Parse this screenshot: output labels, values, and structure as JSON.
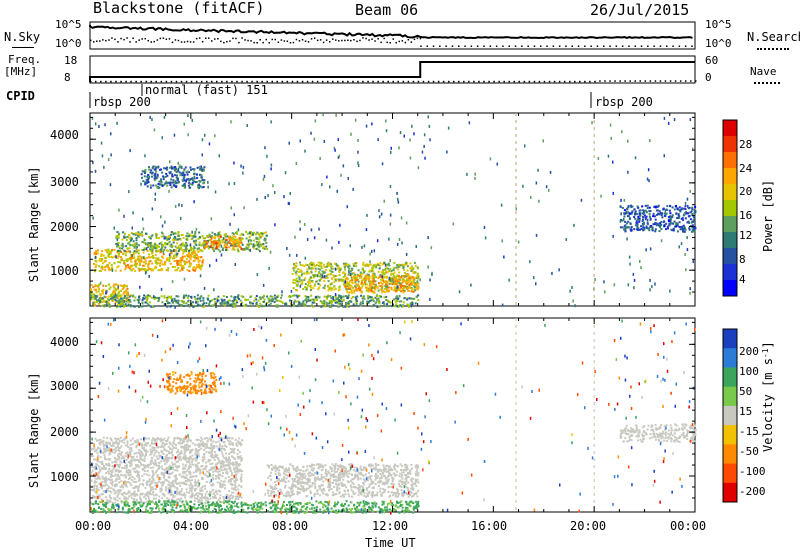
{
  "header": {
    "station": "Blackstone (fitACF)",
    "beam": "Beam 06",
    "date": "26/Jul/2015"
  },
  "status_panels": {
    "nsky_label": "N.Sky",
    "nsky_ticks": [
      "10^5",
      "10^0"
    ],
    "nsearch_label": "N.Search",
    "nsearch_ticks": [
      "10^5",
      "10^0"
    ],
    "freq_label_1": "Freq.",
    "freq_label_2": "[MHz]",
    "freq_ticks": [
      "18",
      "8"
    ],
    "nave_label": "Nave",
    "nave_ticks": [
      "60",
      "0"
    ],
    "cpid_label": "CPID",
    "cpid_segments": [
      {
        "label": "rbsp 200",
        "start_hour": 0
      },
      {
        "label": "normal (fast) 151",
        "start_hour": 2
      },
      {
        "label": "rbsp 200",
        "start_hour": 20
      }
    ],
    "freq_step": {
      "before": 10,
      "after": 16,
      "change_hour": 13.1
    },
    "nave_trace": {
      "before": 3,
      "after": 57,
      "change_hour": 13.1,
      "late_drop_hour": 20.1
    }
  },
  "chart_data": [
    {
      "type": "heatmap",
      "title": "Power",
      "ylabel": "Slant Range [km]",
      "xlabel": "",
      "xlim": [
        0,
        24
      ],
      "ylim": [
        180,
        4600
      ],
      "yticks": [
        1000,
        2000,
        3000,
        4000
      ],
      "colorbar": {
        "label": "Power [dB]",
        "ticks": [
          "28",
          "24",
          "20",
          "16",
          "12",
          "8",
          "4"
        ],
        "colors": [
          "#dd0000",
          "#ee3300",
          "#ff7000",
          "#ffa500",
          "#e7c400",
          "#a4c800",
          "#5e9e5e",
          "#2e7a74",
          "#2650a0",
          "#1c30d8",
          "#0000ff"
        ]
      },
      "echo_regions": [
        {
          "x": [
            0.0,
            1.5
          ],
          "y": [
            200,
            700
          ],
          "value": 20
        },
        {
          "x": [
            0.1,
            4.5
          ],
          "y": [
            1000,
            1500
          ],
          "value": 20
        },
        {
          "x": [
            1.0,
            7.0
          ],
          "y": [
            1450,
            1900
          ],
          "value": 14
        },
        {
          "x": [
            4.5,
            6.0
          ],
          "y": [
            1500,
            1800
          ],
          "value": 24
        },
        {
          "x": [
            0.0,
            13.0
          ],
          "y": [
            180,
            450
          ],
          "value": 12
        },
        {
          "x": [
            8.0,
            13.0
          ],
          "y": [
            550,
            1200
          ],
          "value": 16
        },
        {
          "x": [
            10.0,
            13.0
          ],
          "y": [
            500,
            900
          ],
          "value": 22
        },
        {
          "x": [
            2.0,
            4.5
          ],
          "y": [
            2900,
            3400
          ],
          "value": 8
        },
        {
          "x": [
            21.0,
            24.0
          ],
          "y": [
            1900,
            2500
          ],
          "value": 6
        }
      ]
    },
    {
      "type": "heatmap",
      "title": "Velocity",
      "ylabel": "Slant Range [km]",
      "xlabel": "Time UT",
      "xlim": [
        0,
        24
      ],
      "ylim": [
        180,
        4600
      ],
      "yticks": [
        1000,
        2000,
        3000,
        4000
      ],
      "xticks": [
        "00:00",
        "04:00",
        "08:00",
        "12:00",
        "16:00",
        "20:00",
        "00:00"
      ],
      "colorbar": {
        "label": "Velocity [m s^-1]",
        "ticks": [
          "200",
          "100",
          "50",
          "15",
          "-15",
          "-50",
          "-100",
          "-200"
        ],
        "colors": [
          "#1a3fbf",
          "#2c7bd6",
          "#3ba55c",
          "#79c94a",
          "#c8c8c0",
          "#f2c200",
          "#ff8a00",
          "#ff4a00",
          "#e00000"
        ]
      },
      "echo_regions": [
        {
          "x": [
            0.0,
            6.0
          ],
          "y": [
            400,
            1900
          ],
          "value": 0
        },
        {
          "x": [
            7.0,
            13.0
          ],
          "y": [
            550,
            1300
          ],
          "value": 0
        },
        {
          "x": [
            0.0,
            13.0
          ],
          "y": [
            180,
            450
          ],
          "value": 40
        },
        {
          "x": [
            21.0,
            24.0
          ],
          "y": [
            1800,
            2200
          ],
          "value": 0
        },
        {
          "x": [
            3.0,
            5.0
          ],
          "y": [
            2900,
            3400
          ],
          "value": -50
        }
      ]
    }
  ]
}
